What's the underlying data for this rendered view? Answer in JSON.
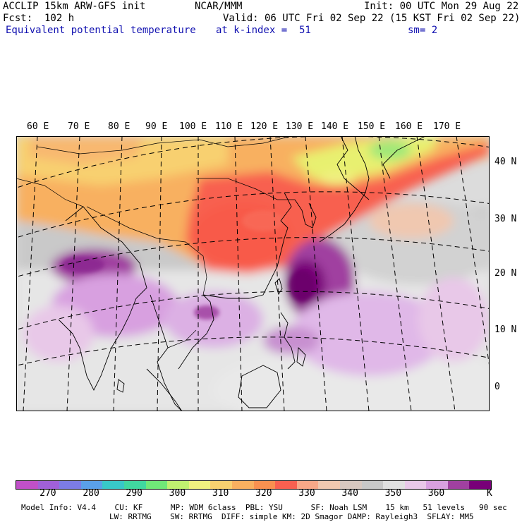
{
  "header": {
    "model": "ACCLIP 15km ARW-GFS init",
    "org": "NCAR/MMM",
    "init": "Init: 00 UTC Mon 29 Aug 22",
    "fcst": "Fcst:  102 h",
    "valid": "Valid: 06 UTC Fri 02 Sep 22 (15 KST Fri 02 Sep 22)",
    "field": "Equivalent potential temperature",
    "level": "at k-index =  51",
    "smooth": "sm= 2"
  },
  "map": {
    "lon_labels": [
      "60 E",
      "70 E",
      "80 E",
      "90 E",
      "100 E",
      "110 E",
      "120 E",
      "130 E",
      "140 E",
      "150 E",
      "160 E",
      "170 E"
    ],
    "lat_labels": [
      "40 N",
      "30 N",
      "20 N",
      "10 N",
      "0"
    ]
  },
  "colorbar": {
    "colors": [
      "#c050c8",
      "#a060d8",
      "#7c7ce4",
      "#5aa0e8",
      "#38c8c8",
      "#40d8a0",
      "#70e878",
      "#c0f070",
      "#f0f080",
      "#f8d070",
      "#f8b060",
      "#f89050",
      "#f86050",
      "#f8a888",
      "#f0c8b0",
      "#d8c8c0",
      "#c8c8c8",
      "#e0e0e0",
      "#e8c8e8",
      "#d8a0e0",
      "#a040a0",
      "#780078"
    ],
    "ticks": [
      "270",
      "280",
      "290",
      "300",
      "310",
      "320",
      "330",
      "340",
      "350",
      "360"
    ],
    "unit": "K"
  },
  "footer": {
    "line1": "Model Info: V4.4    CU: KF      MP: WDM 6class  PBL: YSU      SF: Noah LSM    15 km   51 levels   90 sec",
    "line2": "LW: RRTMG    SW: RRTMG  DIFF: simple KM: 2D Smagor DAMP: Rayleigh3  SFLAY: MM5"
  }
}
